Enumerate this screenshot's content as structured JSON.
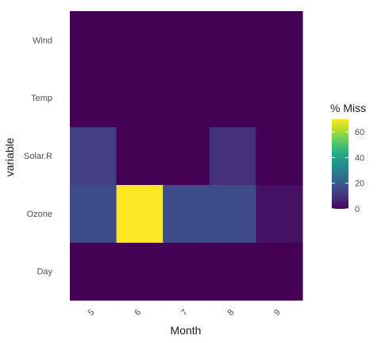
{
  "chart_data": {
    "type": "heatmap",
    "title": "",
    "xlabel": "Month",
    "ylabel": "variable",
    "x_categories": [
      "5",
      "6",
      "7",
      "8",
      "9"
    ],
    "y_categories": [
      "Day",
      "Ozone",
      "Solar.R",
      "Temp",
      "Wind"
    ],
    "values": {
      "Wind": [
        0,
        0,
        0,
        0,
        0
      ],
      "Temp": [
        0,
        0,
        0,
        0,
        0
      ],
      "Solar.R": [
        12.9,
        0,
        0,
        9.7,
        0
      ],
      "Ozone": [
        16.1,
        70,
        16.1,
        16.1,
        3.3
      ],
      "Day": [
        0,
        0,
        0,
        0,
        0
      ]
    },
    "legend": {
      "title": "% Miss",
      "ticks": [
        0,
        20,
        40,
        60
      ],
      "range": [
        0,
        70
      ],
      "colormap": "viridis",
      "placement": "right"
    }
  }
}
